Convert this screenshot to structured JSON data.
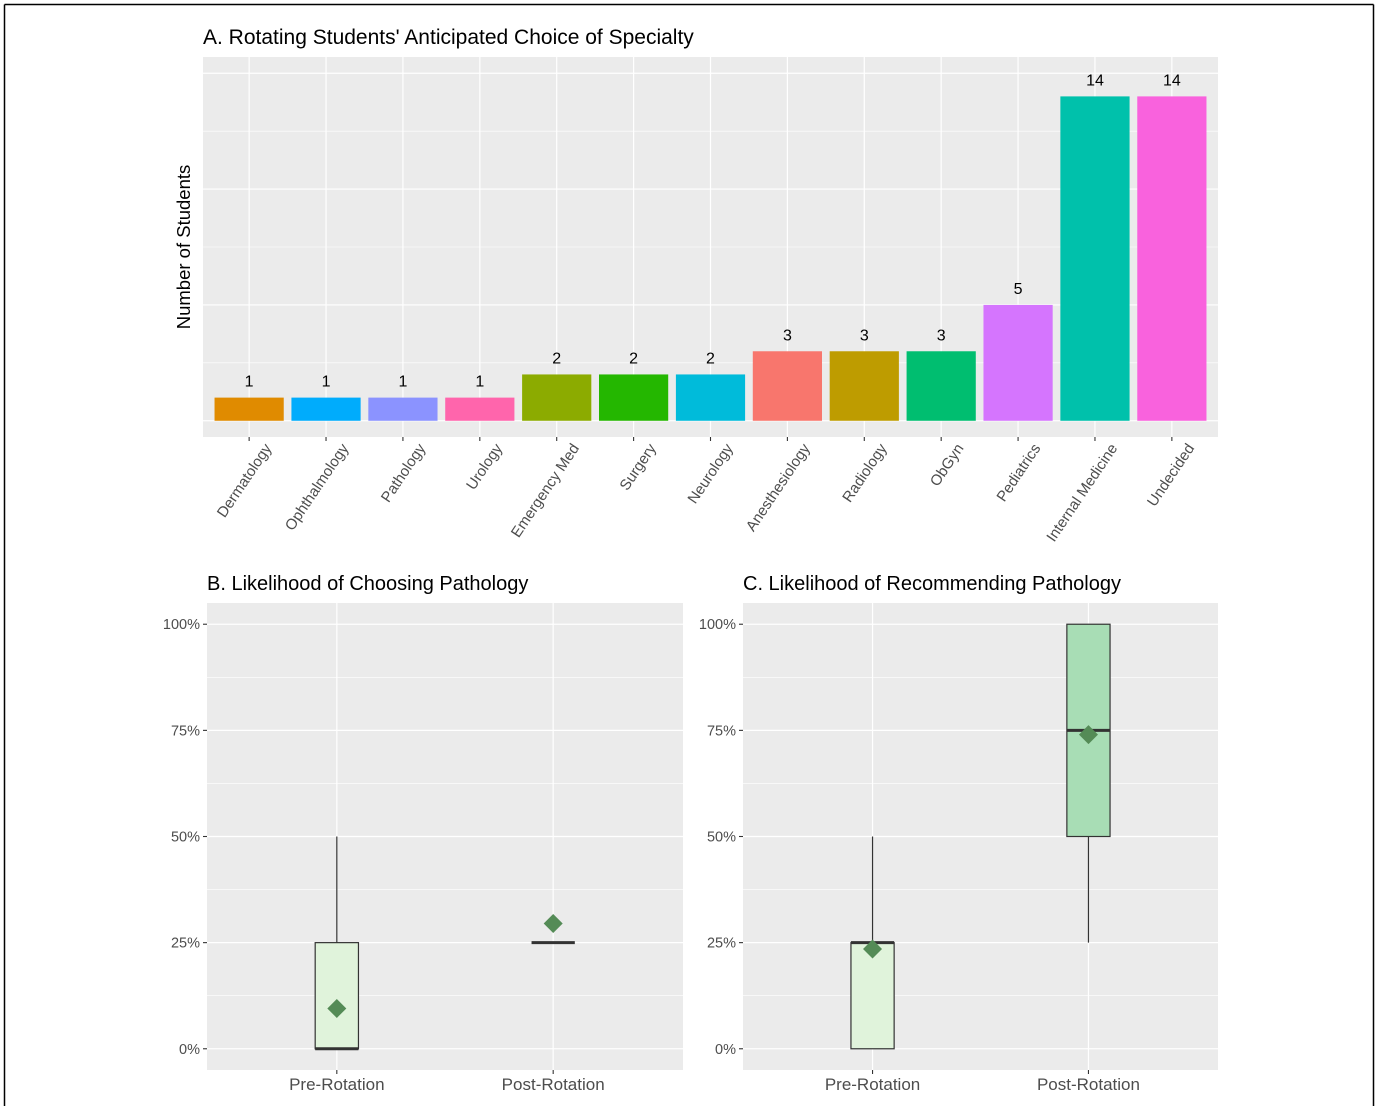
{
  "figure": {
    "frame_color": "#000000",
    "panel_background": "#EBEBEB",
    "grid_color": "#FFFFFF",
    "axis_tick_color": "#333333",
    "axis_text_color": "#4D4D4D",
    "text_color": "#000000"
  },
  "chart_data": [
    {
      "type": "bar",
      "title": "A. Rotating Students' Anticipated Choice of Specialty",
      "ylabel": "Number of Students",
      "categories": [
        "Dermatology",
        "Ophthalmology",
        "Pathology",
        "Urology",
        "Emergency Med",
        "Surgery",
        "Neurology",
        "Anesthesiology",
        "Radiology",
        "ObGyn",
        "Pediatrics",
        "Internal Medicine",
        "Undecided"
      ],
      "values": [
        1,
        1,
        1,
        1,
        2,
        2,
        2,
        3,
        3,
        3,
        5,
        14,
        14
      ],
      "colors": [
        "#E08B00",
        "#00ACFC",
        "#8B93FF",
        "#FF65AC",
        "#8CAB00",
        "#24B700",
        "#00BBDA",
        "#F8766D",
        "#BE9C00",
        "#00BE70",
        "#D575FE",
        "#00C1AB",
        "#F962DD"
      ],
      "ylim": [
        -0.7,
        15.7
      ],
      "y_major_grid": [
        0,
        5,
        10,
        15
      ],
      "y_minor_grid": [
        2.5,
        7.5,
        12.5
      ],
      "y_tick_labels_shown": false,
      "value_labels_shown": true,
      "grid": true,
      "legend": "none"
    },
    {
      "type": "box",
      "title": "B. Likelihood of Choosing Pathology",
      "categories": [
        "Pre-Rotation",
        "Post-Rotation"
      ],
      "ylim": [
        -5,
        105
      ],
      "y_ticks": [
        0,
        25,
        50,
        75,
        100
      ],
      "y_tick_labels": [
        "0%",
        "25%",
        "50%",
        "75%",
        "100%"
      ],
      "y_minor_grid": [
        12.5,
        37.5,
        62.5,
        87.5
      ],
      "boxes": [
        {
          "min": 0,
          "q1": 0,
          "median": 0,
          "q3": 25,
          "max": 50,
          "mean": 9.5
        },
        {
          "min": 25,
          "q1": 25,
          "median": 25,
          "q3": 25,
          "max": 25,
          "mean": 29.5
        }
      ],
      "fills": [
        "#E0F3DB",
        "#A8DDB5"
      ],
      "outline_color": "#333333",
      "mean_marker": {
        "shape": "diamond",
        "color": "#548B56"
      },
      "grid": true,
      "legend": "none"
    },
    {
      "type": "box",
      "title": "C. Likelihood of Recommending Pathology",
      "categories": [
        "Pre-Rotation",
        "Post-Rotation"
      ],
      "ylim": [
        -5,
        105
      ],
      "y_ticks": [
        0,
        25,
        50,
        75,
        100
      ],
      "y_tick_labels": [
        "0%",
        "25%",
        "50%",
        "75%",
        "100%"
      ],
      "y_minor_grid": [
        12.5,
        37.5,
        62.5,
        87.5
      ],
      "boxes": [
        {
          "min": 0,
          "q1": 0,
          "median": 25,
          "q3": 25,
          "max": 50,
          "mean": 23.5
        },
        {
          "min": 25,
          "q1": 50,
          "median": 75,
          "q3": 100,
          "max": 100,
          "mean": 74
        }
      ],
      "fills": [
        "#E0F3DB",
        "#A8DDB5"
      ],
      "outline_color": "#333333",
      "mean_marker": {
        "shape": "diamond",
        "color": "#548B56"
      },
      "grid": true,
      "legend": "none"
    }
  ]
}
